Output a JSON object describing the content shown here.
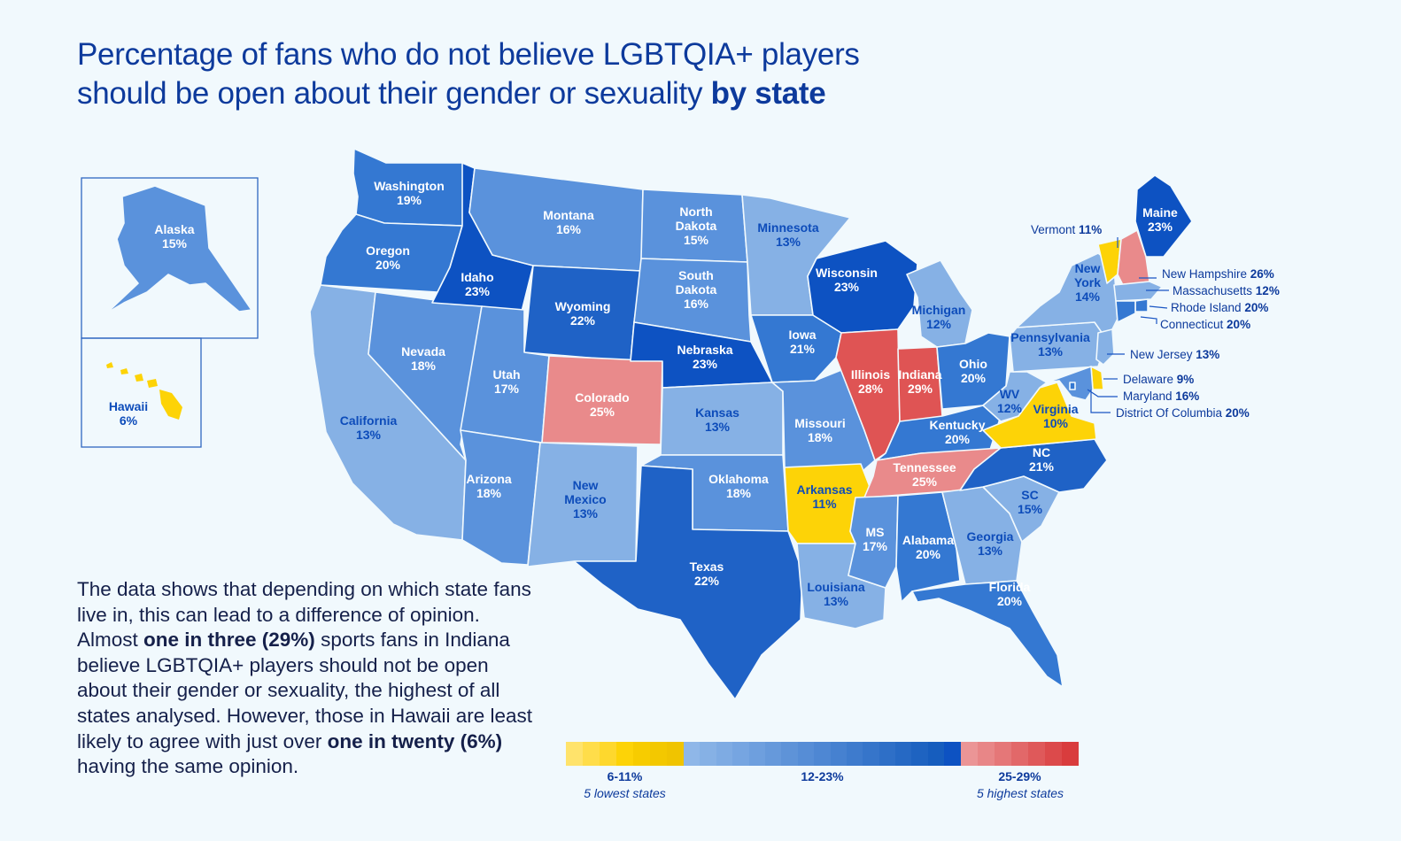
{
  "title": {
    "line1": "Percentage of fans who do not believe LGBTQIA+ players",
    "line2_regular": "should be open about their gender or sexuality ",
    "line2_bold": "by state"
  },
  "colors": {
    "yellow": "#fdd307",
    "light_blue": "#86b1e5",
    "mid_blue": "#5a92dc",
    "blue": "#3478d2",
    "dark_blue": "#1f62c6",
    "darkest_blue": "#0d52c2",
    "pink": "#e98a8b",
    "red": "#df5454"
  },
  "states": [
    {
      "name": "Washington",
      "value": "19%",
      "tone": "blue"
    },
    {
      "name": "Oregon",
      "value": "20%",
      "tone": "blue"
    },
    {
      "name": "California",
      "value": "13%",
      "tone": "light_blue"
    },
    {
      "name": "Nevada",
      "value": "18%",
      "tone": "mid_blue"
    },
    {
      "name": "Idaho",
      "value": "23%",
      "tone": "darkest_blue"
    },
    {
      "name": "Montana",
      "value": "16%",
      "tone": "mid_blue"
    },
    {
      "name": "Wyoming",
      "value": "22%",
      "tone": "dark_blue"
    },
    {
      "name": "Utah",
      "value": "17%",
      "tone": "mid_blue"
    },
    {
      "name": "Arizona",
      "value": "18%",
      "tone": "mid_blue"
    },
    {
      "name": "Colorado",
      "value": "25%",
      "tone": "pink"
    },
    {
      "name": "New Mexico",
      "value": "13%",
      "tone": "light_blue"
    },
    {
      "name": "North Dakota",
      "value": "15%",
      "tone": "mid_blue"
    },
    {
      "name": "South Dakota",
      "value": "16%",
      "tone": "mid_blue"
    },
    {
      "name": "Nebraska",
      "value": "23%",
      "tone": "darkest_blue"
    },
    {
      "name": "Kansas",
      "value": "13%",
      "tone": "light_blue"
    },
    {
      "name": "Oklahoma",
      "value": "18%",
      "tone": "mid_blue"
    },
    {
      "name": "Texas",
      "value": "22%",
      "tone": "dark_blue"
    },
    {
      "name": "Minnesota",
      "value": "13%",
      "tone": "light_blue"
    },
    {
      "name": "Iowa",
      "value": "21%",
      "tone": "blue"
    },
    {
      "name": "Missouri",
      "value": "18%",
      "tone": "mid_blue"
    },
    {
      "name": "Arkansas",
      "value": "11%",
      "tone": "yellow"
    },
    {
      "name": "Louisiana",
      "value": "13%",
      "tone": "light_blue"
    },
    {
      "name": "Wisconsin",
      "value": "23%",
      "tone": "darkest_blue"
    },
    {
      "name": "Illinois",
      "value": "28%",
      "tone": "red"
    },
    {
      "name": "Michigan",
      "value": "12%",
      "tone": "light_blue"
    },
    {
      "name": "Indiana",
      "value": "29%",
      "tone": "red"
    },
    {
      "name": "Ohio",
      "value": "20%",
      "tone": "blue"
    },
    {
      "name": "Kentucky",
      "value": "20%",
      "tone": "blue"
    },
    {
      "name": "Tennessee",
      "value": "25%",
      "tone": "pink"
    },
    {
      "name": "MS",
      "value": "17%",
      "tone": "mid_blue"
    },
    {
      "name": "Alabama",
      "value": "20%",
      "tone": "blue"
    },
    {
      "name": "Georgia",
      "value": "13%",
      "tone": "light_blue"
    },
    {
      "name": "Florida",
      "value": "20%",
      "tone": "blue"
    },
    {
      "name": "SC",
      "value": "15%",
      "tone": "light_blue"
    },
    {
      "name": "NC",
      "value": "21%",
      "tone": "dark_blue"
    },
    {
      "name": "Virginia",
      "value": "10%",
      "tone": "yellow"
    },
    {
      "name": "WV",
      "value": "12%",
      "tone": "light_blue"
    },
    {
      "name": "Pennsylvania",
      "value": "13%",
      "tone": "light_blue"
    },
    {
      "name": "New York",
      "value": "14%",
      "tone": "light_blue"
    },
    {
      "name": "Maine",
      "value": "23%",
      "tone": "darkest_blue"
    },
    {
      "name": "Vermont",
      "value": "11%",
      "tone": "yellow"
    },
    {
      "name": "New Hampshire",
      "value": "26%",
      "tone": "pink"
    },
    {
      "name": "Massachusetts",
      "value": "12%",
      "tone": "light_blue"
    },
    {
      "name": "Rhode Island",
      "value": "20%",
      "tone": "blue"
    },
    {
      "name": "Connecticut",
      "value": "20%",
      "tone": "blue"
    },
    {
      "name": "New Jersey",
      "value": "13%",
      "tone": "light_blue"
    },
    {
      "name": "Delaware",
      "value": "9%",
      "tone": "yellow"
    },
    {
      "name": "Maryland",
      "value": "16%",
      "tone": "mid_blue"
    },
    {
      "name": "District Of Columbia",
      "value": "20%",
      "tone": "blue"
    },
    {
      "name": "Alaska",
      "value": "15%",
      "tone": "mid_blue"
    },
    {
      "name": "Hawaii",
      "value": "6%",
      "tone": "yellow"
    }
  ],
  "body": {
    "p1": "The data shows that depending on which state fans live in, this can lead to a difference of opinion. Almost ",
    "b1": "one in three (29%)",
    "p2": " sports fans in Indiana believe LGBTQIA+ players should not be open about their gender or sexuality, the highest of all states analysed. However, those in Hawaii are least likely to agree with just over ",
    "b2": "one in twenty (6%)",
    "p3": " having the same opinion."
  },
  "legend": {
    "low": {
      "range": "6-11%",
      "note": "5 lowest states",
      "colors": [
        "#ffe36b",
        "#ffdd4a",
        "#fed82d",
        "#fdd307",
        "#f7cc00",
        "#f3c800",
        "#f0c400"
      ]
    },
    "mid": {
      "range": "12-23%",
      "colors": [
        "#8fb7e8",
        "#86b1e5",
        "#7eabe3",
        "#76a5e1",
        "#6e9fde",
        "#6699db",
        "#5e93d8",
        "#568dd6",
        "#4e87d3",
        "#4681d0",
        "#3e7bcd",
        "#3675ca",
        "#2e6fc7",
        "#2669c4",
        "#1e63c1",
        "#165dbe",
        "#0d52c2"
      ]
    },
    "high": {
      "range": "25-29%",
      "note": "5 highest states",
      "colors": [
        "#eb9596",
        "#e88687",
        "#e57778",
        "#e26869",
        "#df595a",
        "#dc4a4b",
        "#d93c3d"
      ]
    }
  }
}
